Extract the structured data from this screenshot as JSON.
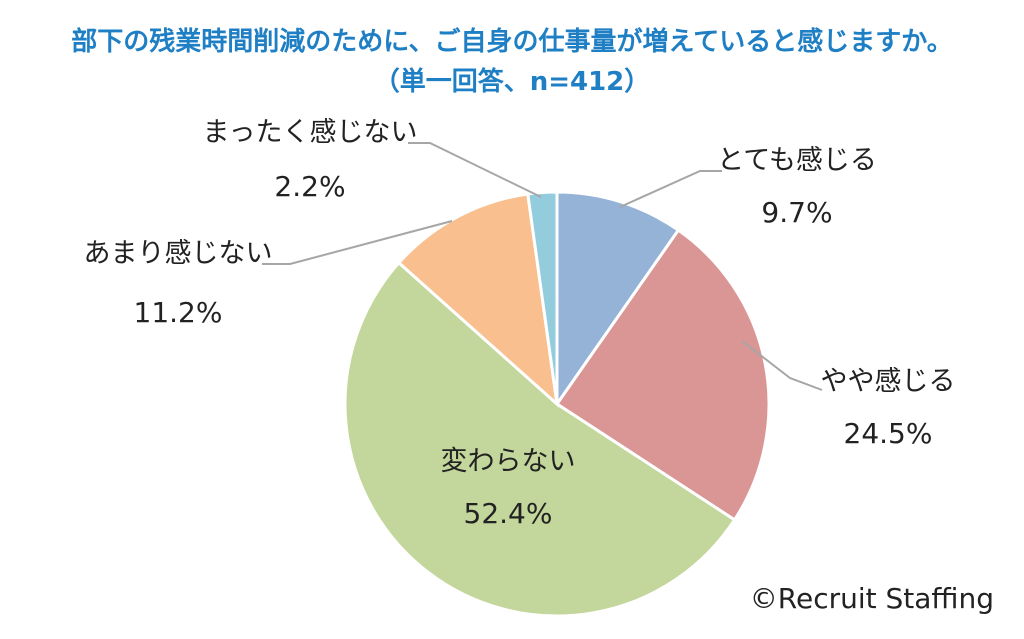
{
  "chart_data": {
    "type": "pie",
    "title": "部下の残業時間削減のために、ご自身の仕事量が増えていると感じますか。",
    "subtitle": "（単一回答、n=412）",
    "slices": [
      {
        "label": "とても感じる",
        "value": 9.7,
        "display": "9.7%",
        "color": "#95b3d7"
      },
      {
        "label": "やや感じる",
        "value": 24.5,
        "display": "24.5%",
        "color": "#da9694"
      },
      {
        "label": "変わらない",
        "value": 52.4,
        "display": "52.4%",
        "color": "#c3d69b"
      },
      {
        "label": "あまり感じない",
        "value": 11.2,
        "display": "11.2%",
        "color": "#fabf8f"
      },
      {
        "label": "まったく感じない",
        "value": 2.2,
        "display": "2.2%",
        "color": "#93cddd"
      }
    ],
    "start_angle_deg": 0,
    "direction": "clockwise"
  },
  "credit": "©Recruit Staffing"
}
